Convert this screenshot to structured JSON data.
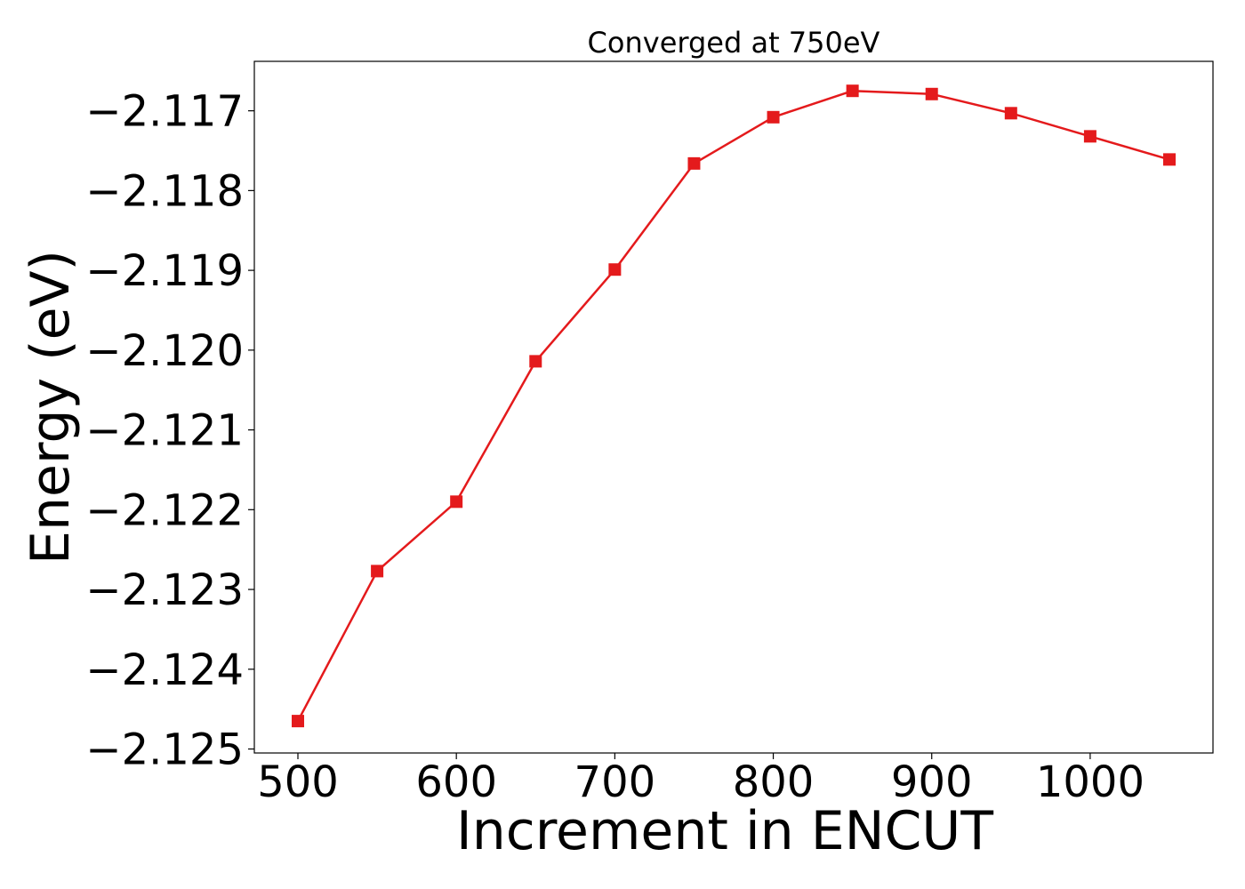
{
  "chart_data": {
    "type": "line",
    "title": "Converged at 750eV",
    "xlabel": "Increment in ENCUT",
    "ylabel": "Energy (eV)",
    "x": [
      500,
      550,
      600,
      650,
      700,
      750,
      800,
      850,
      900,
      950,
      1000,
      1050
    ],
    "series": [
      {
        "values": [
          -2.12465,
          -2.12277,
          -2.1219,
          -2.12014,
          -2.11899,
          -2.11766,
          -2.11708,
          -2.11675,
          -2.11679,
          -2.11703,
          -2.11732,
          -2.11761
        ],
        "color": "#e41a1c",
        "marker": "square"
      }
    ],
    "xticks": [
      500,
      600,
      700,
      800,
      900,
      1000
    ],
    "xtick_labels": [
      "500",
      "600",
      "700",
      "800",
      "900",
      "1000"
    ],
    "yticks": [
      -2.117,
      -2.118,
      -2.119,
      -2.12,
      -2.121,
      -2.122,
      -2.123,
      -2.124,
      -2.125
    ],
    "ytick_labels": [
      "−2.117",
      "−2.118",
      "−2.119",
      "−2.120",
      "−2.121",
      "−2.122",
      "−2.123",
      "−2.124",
      "−2.125"
    ],
    "xlim": [
      472.5,
      1077.5
    ],
    "ylim": [
      -2.12505,
      -2.11638
    ],
    "grid": false,
    "legend": false
  }
}
